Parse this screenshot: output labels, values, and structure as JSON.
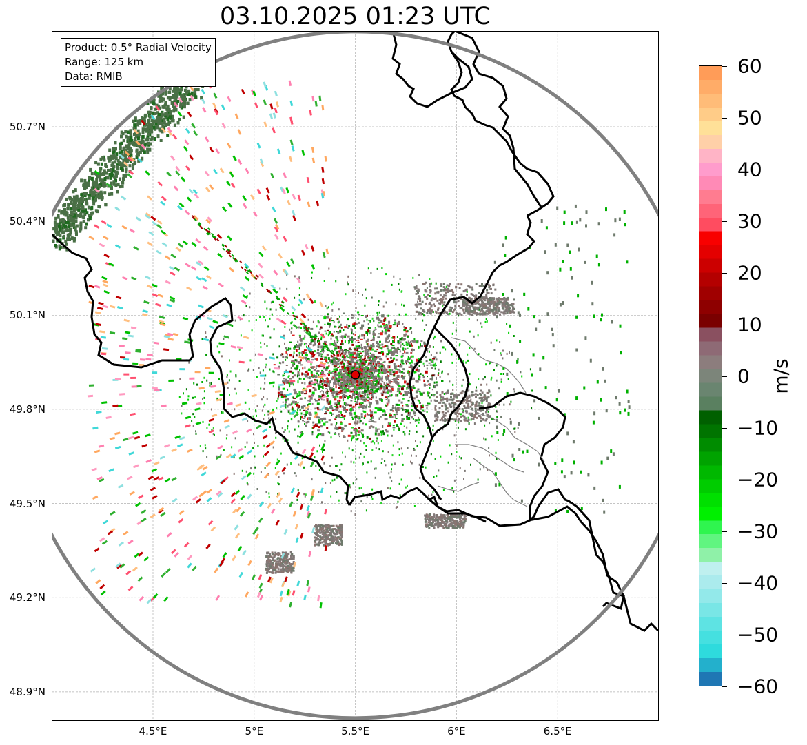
{
  "title": "03.10.2025 01:23 UTC",
  "info_box": {
    "product": "Product: 0.5° Radial Velocity",
    "range": "Range: 125 km",
    "data": "Data: RMIB"
  },
  "map": {
    "lon_range": [
      4.0,
      7.0
    ],
    "lat_range": [
      48.8,
      51.0
    ],
    "x_ticks": [
      {
        "value": 4.5,
        "label": "4.5°E"
      },
      {
        "value": 5.0,
        "label": "5°E"
      },
      {
        "value": 5.5,
        "label": "5.5°E"
      },
      {
        "value": 6.0,
        "label": "6°E"
      },
      {
        "value": 6.5,
        "label": "6.5°E"
      }
    ],
    "y_ticks": [
      {
        "value": 50.7,
        "label": "50.7°N"
      },
      {
        "value": 50.4,
        "label": "50.4°N"
      },
      {
        "value": 50.1,
        "label": "50.1°N"
      },
      {
        "value": 49.8,
        "label": "49.8°N"
      },
      {
        "value": 49.5,
        "label": "49.5°N"
      },
      {
        "value": 49.2,
        "label": "49.2°N"
      },
      {
        "value": 48.9,
        "label": "48.9°N"
      }
    ],
    "gridlines": true,
    "radar_site": {
      "lon": 5.5,
      "lat": 49.91
    },
    "range_ring_km": 125
  },
  "colorbar": {
    "unit": "m/s",
    "min": -60,
    "max": 60,
    "ticks": [
      "60",
      "50",
      "40",
      "30",
      "20",
      "10",
      "0",
      "−10",
      "−20",
      "−30",
      "−40",
      "−50",
      "−60"
    ]
  },
  "colors": {
    "ring": "#808080",
    "border": "#000000",
    "grid": "#b0b0b0",
    "site": "#e00000"
  }
}
